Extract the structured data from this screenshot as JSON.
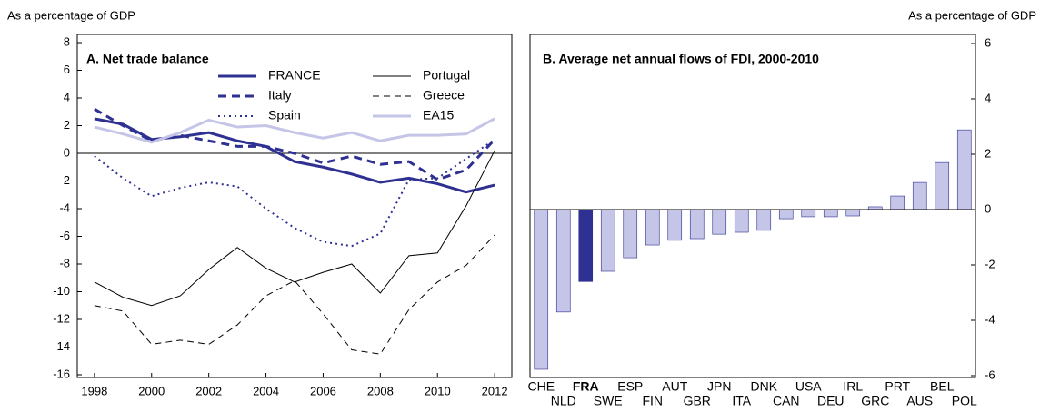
{
  "chart_data": [
    {
      "type": "line",
      "title": "A. Net trade balance",
      "ylabel": "As a percentage of GDP",
      "x": [
        1998,
        1999,
        2000,
        2001,
        2002,
        2003,
        2004,
        2005,
        2006,
        2007,
        2008,
        2009,
        2010,
        2011,
        2012
      ],
      "xlim": [
        1997.4,
        2012.6
      ],
      "xticks": [
        1998,
        2000,
        2002,
        2004,
        2006,
        2008,
        2010,
        2012
      ],
      "ylim": [
        -16,
        8
      ],
      "yticks": [
        -16,
        -14,
        -12,
        -10,
        -8,
        -6,
        -4,
        -2,
        0,
        2,
        4,
        6,
        8
      ],
      "series": [
        {
          "name": "FRANCE",
          "color": "#2e3192",
          "width": 3,
          "dash": "none",
          "values": [
            2.5,
            2.1,
            1.0,
            1.2,
            1.5,
            0.9,
            0.5,
            -0.6,
            -1.0,
            -1.5,
            -2.1,
            -1.8,
            -2.2,
            -2.8,
            -2.3
          ]
        },
        {
          "name": "Italy",
          "color": "#2e3192",
          "width": 3,
          "dash": "9,6",
          "values": [
            3.2,
            2.0,
            0.9,
            1.3,
            0.9,
            0.5,
            0.5,
            0.0,
            -0.7,
            -0.2,
            -0.8,
            -0.6,
            -1.9,
            -1.2,
            1.0
          ]
        },
        {
          "name": "Spain",
          "color": "#2e3192",
          "width": 2,
          "dash": "2,4",
          "values": [
            -0.2,
            -1.8,
            -3.1,
            -2.5,
            -2.1,
            -2.4,
            -4.0,
            -5.4,
            -6.4,
            -6.7,
            -5.8,
            -1.9,
            -1.8,
            -0.4,
            1.0
          ]
        },
        {
          "name": "Portugal",
          "color": "#000000",
          "width": 1,
          "dash": "none",
          "values": [
            -9.3,
            -10.4,
            -11.0,
            -10.3,
            -8.4,
            -6.8,
            -8.3,
            -9.3,
            -8.6,
            -8.0,
            -10.1,
            -7.4,
            -7.2,
            -3.8,
            0.2
          ]
        },
        {
          "name": "Greece",
          "color": "#000000",
          "width": 1,
          "dash": "7,5",
          "values": [
            -11.0,
            -11.4,
            -13.8,
            -13.5,
            -13.8,
            -12.4,
            -10.3,
            -9.2,
            -11.6,
            -14.2,
            -14.5,
            -11.3,
            -9.3,
            -8.1,
            -5.9
          ]
        },
        {
          "name": "EA15",
          "color": "#c5c5e8",
          "width": 3,
          "dash": "none",
          "values": [
            1.9,
            1.4,
            0.8,
            1.5,
            2.4,
            1.9,
            2.0,
            1.5,
            1.1,
            1.5,
            0.9,
            1.3,
            1.3,
            1.4,
            2.5
          ]
        }
      ]
    },
    {
      "type": "bar",
      "title": "B. Average net annual flows of FDI, 2000-2010",
      "ylabel": "As a percentage of GDP",
      "categories": [
        "CHE",
        "NLD",
        "FRA",
        "SWE",
        "ESP",
        "FIN",
        "AUT",
        "GBR",
        "JPN",
        "ITA",
        "DNK",
        "CAN",
        "USA",
        "DEU",
        "IRL",
        "GRC",
        "PRT",
        "AUS",
        "BEL",
        "POL"
      ],
      "values": [
        -5.77,
        -3.7,
        -2.6,
        -2.23,
        -1.74,
        -1.28,
        -1.11,
        -1.05,
        -0.89,
        -0.82,
        -0.75,
        -0.33,
        -0.26,
        -0.26,
        -0.23,
        0.1,
        0.49,
        0.98,
        1.7,
        2.88
      ],
      "color": "#c5c5e8",
      "colors": [
        "#c5c5e8",
        "#c5c5e8",
        "#2e3192",
        "#c5c5e8",
        "#c5c5e8",
        "#c5c5e8",
        "#c5c5e8",
        "#c5c5e8",
        "#c5c5e8",
        "#c5c5e8",
        "#c5c5e8",
        "#c5c5e8",
        "#c5c5e8",
        "#c5c5e8",
        "#c5c5e8",
        "#c5c5e8",
        "#c5c5e8",
        "#c5c5e8",
        "#c5c5e8",
        "#c5c5e8"
      ],
      "ylim": [
        -6,
        6
      ],
      "yticks": [
        -6,
        -4,
        -2,
        0,
        2,
        4,
        6
      ]
    }
  ]
}
